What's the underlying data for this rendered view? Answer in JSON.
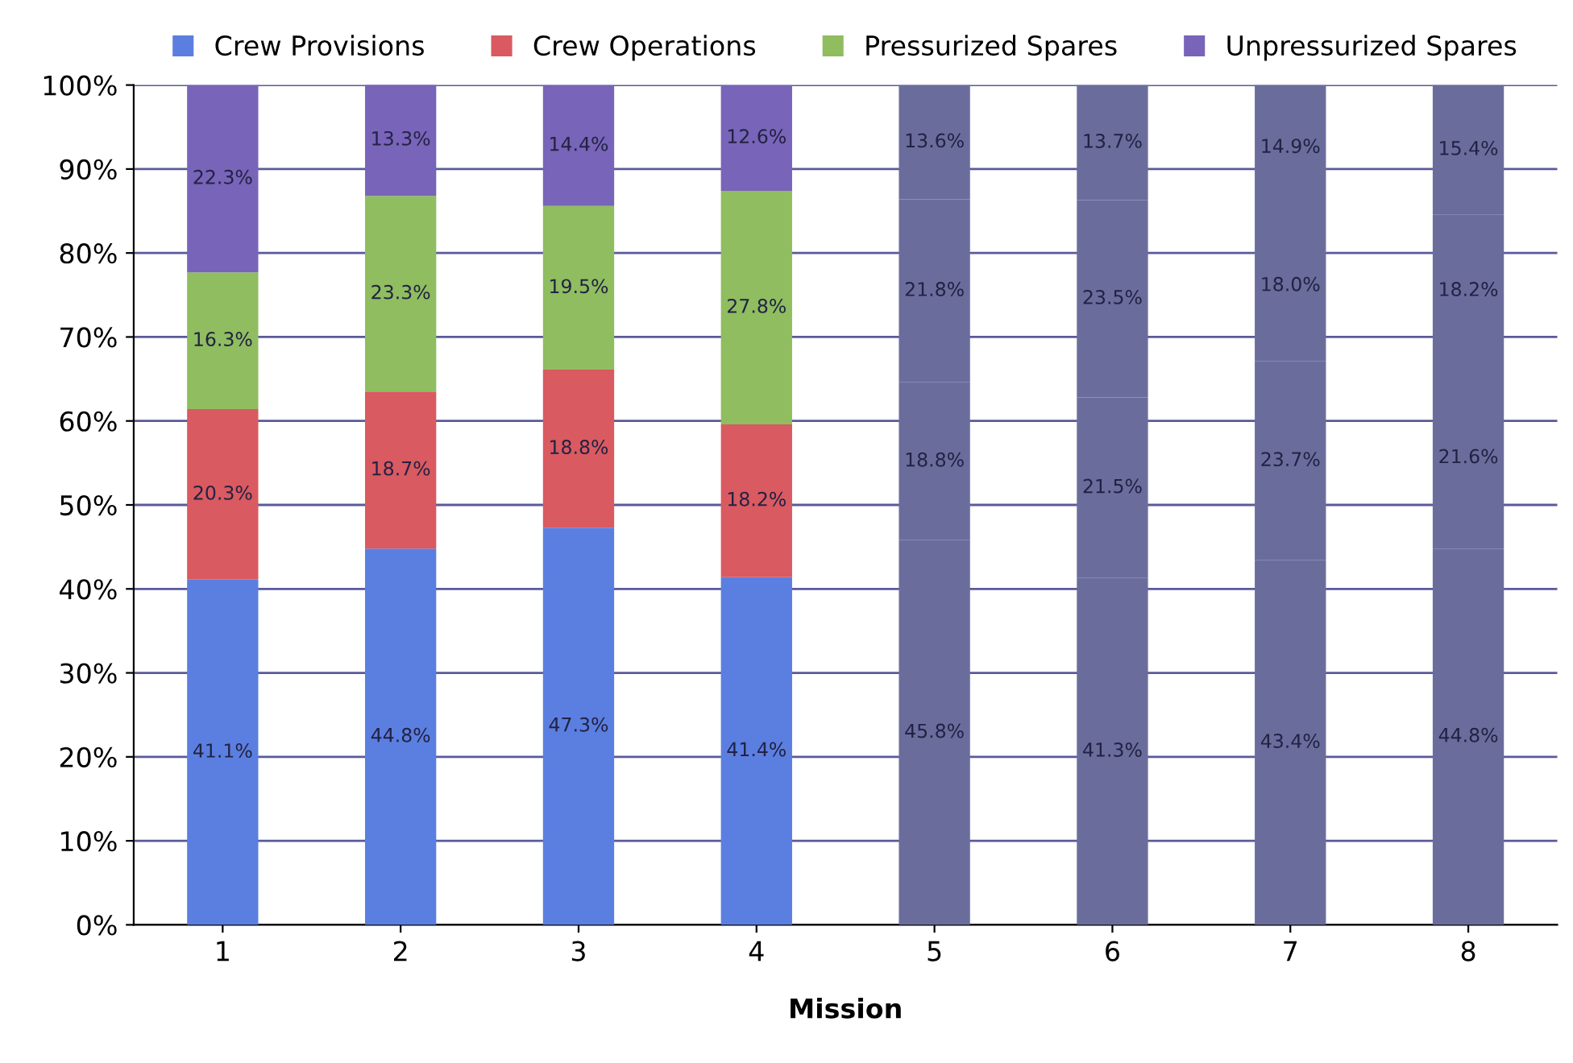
{
  "chart_data": {
    "type": "bar",
    "stacked": true,
    "xlabel": "Mission",
    "categories": [
      "1",
      "2",
      "3",
      "4",
      "5",
      "6",
      "7",
      "8"
    ],
    "series": [
      {
        "name": "Crew Provisions",
        "color": "#5b7fe0",
        "colors": [
          "#5b7fe0",
          "#5b7fe0",
          "#5b7fe0",
          "#5b7fe0",
          "#6a6d9c",
          "#6a6d9c",
          "#6a6d9c",
          "#6a6d9c"
        ],
        "values": [
          41.1,
          44.8,
          47.3,
          41.4,
          45.8,
          41.3,
          43.4,
          44.8
        ],
        "value_labels": [
          "41.1%",
          "44.8%",
          "47.3%",
          "41.4%",
          "45.8%",
          "41.3%",
          "43.4%",
          "44.8%"
        ]
      },
      {
        "name": "Crew Operations",
        "color": "#d95a60",
        "colors": [
          "#d95a60",
          "#d95a60",
          "#d95a60",
          "#d95a60",
          "#6a6d9c",
          "#6a6d9c",
          "#6a6d9c",
          "#6a6d9c"
        ],
        "values": [
          20.3,
          18.7,
          18.8,
          18.2,
          18.8,
          21.5,
          23.7,
          21.6
        ],
        "value_labels": [
          "20.3%",
          "18.7%",
          "18.8%",
          "18.2%",
          "18.8%",
          "21.5%",
          "23.7%",
          "21.6%"
        ]
      },
      {
        "name": "Pressurized Spares",
        "color": "#8fbd60",
        "colors": [
          "#8fbd60",
          "#8fbd60",
          "#8fbd60",
          "#8fbd60",
          "#6a6d9c",
          "#6a6d9c",
          "#6a6d9c",
          "#6a6d9c"
        ],
        "values": [
          16.3,
          23.3,
          19.5,
          27.8,
          21.8,
          23.5,
          18.0,
          18.2
        ],
        "value_labels": [
          "16.3%",
          "23.3%",
          "19.5%",
          "27.8%",
          "21.8%",
          "23.5%",
          "18.0%",
          "18.2%"
        ]
      },
      {
        "name": "Unpressurized Spares",
        "color": "#7864b8",
        "colors": [
          "#7864b8",
          "#7864b8",
          "#7864b8",
          "#7864b8",
          "#6a6d9c",
          "#6a6d9c",
          "#6a6d9c",
          "#6a6d9c"
        ],
        "values": [
          22.3,
          13.3,
          14.4,
          12.6,
          13.6,
          13.7,
          14.9,
          15.4
        ],
        "value_labels": [
          "22.3%",
          "13.3%",
          "14.4%",
          "12.6%",
          "13.6%",
          "13.7%",
          "14.9%",
          "15.4%"
        ]
      }
    ],
    "ylim": [
      0,
      100
    ],
    "yticks": [
      {
        "value": 0,
        "label": "0%"
      },
      {
        "value": 10,
        "label": "10%"
      },
      {
        "value": 20,
        "label": "20%"
      },
      {
        "value": 30,
        "label": "30%"
      },
      {
        "value": 40,
        "label": "40%"
      },
      {
        "value": 50,
        "label": "50%"
      },
      {
        "value": 60,
        "label": "60%"
      },
      {
        "value": 70,
        "label": "70%"
      },
      {
        "value": 80,
        "label": "80%"
      },
      {
        "value": 90,
        "label": "90%"
      },
      {
        "value": 100,
        "label": "100%"
      }
    ],
    "grid": "y",
    "legend": "top"
  }
}
